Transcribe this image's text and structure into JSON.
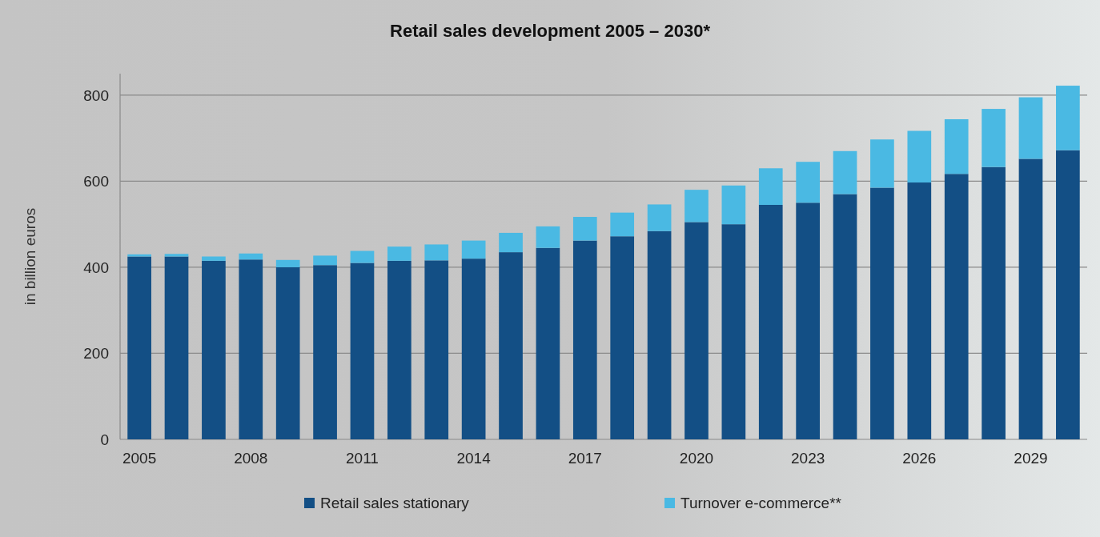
{
  "chart_data": {
    "type": "bar",
    "stacked": true,
    "title": "Retail sales development 2005 – 2030*",
    "ylabel": "in billion euros",
    "categories": [
      "2005",
      null,
      null,
      "2008",
      null,
      null,
      "2011",
      null,
      null,
      "2014",
      null,
      null,
      "2017",
      null,
      null,
      "2020",
      null,
      null,
      "2023",
      null,
      null,
      "2026",
      null,
      null,
      "2029",
      null
    ],
    "series": [
      {
        "name": "Retail sales stationary",
        "color": "#134f85",
        "values": [
          425,
          425,
          415,
          418,
          400,
          405,
          410,
          415,
          416,
          420,
          435,
          445,
          462,
          472,
          484,
          505,
          500,
          545,
          550,
          570,
          585,
          597,
          617,
          633,
          652,
          672
        ]
      },
      {
        "name": "Turnover e-commerce**",
        "color": "#4ab9e3",
        "values": [
          5,
          6,
          10,
          14,
          17,
          22,
          28,
          33,
          37,
          42,
          45,
          50,
          55,
          55,
          62,
          75,
          90,
          85,
          95,
          100,
          112,
          120,
          127,
          135,
          143,
          150
        ]
      }
    ],
    "ylim": [
      0,
      850
    ],
    "yticks": [
      0,
      200,
      400,
      600,
      800
    ],
    "grid": "y",
    "legend": "bottom"
  }
}
